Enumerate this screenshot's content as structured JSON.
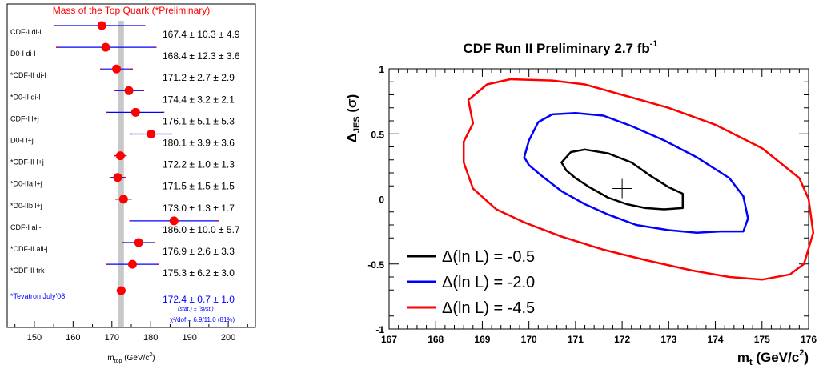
{
  "chart_data": [
    {
      "type": "scatter",
      "title": "Mass of the Top Quark (*Preliminary)",
      "xlabel_main": "m",
      "xlabel_sub": "top",
      "xlabel_tail": " (GeV/c",
      "xlabel_sup": "2",
      "xlabel_close": ")",
      "xlim": [
        143,
        207
      ],
      "xticks": [
        "150",
        "160",
        "170",
        "180",
        "190",
        "200"
      ],
      "band": [
        171.7,
        173.1
      ],
      "measurements": [
        {
          "label": "CDF-I di-l",
          "value": 167.4,
          "err_lo": 155.1,
          "err_hi": 178.6,
          "result": "167.4 ± 10.3 ±  4.9"
        },
        {
          "label": "D0-I di-l",
          "value": 168.4,
          "err_lo": 155.6,
          "err_hi": 181.5,
          "result": "168.4 ± 12.3 ±  3.6"
        },
        {
          "label": "*CDF-II di-l",
          "value": 171.2,
          "err_lo": 167.0,
          "err_hi": 175.4,
          "result": "171.2 ±  2.7 ±  2.9"
        },
        {
          "label": "*D0-II di-l",
          "value": 174.4,
          "err_lo": 170.5,
          "err_hi": 178.3,
          "result": "174.4 ±  3.2 ±  2.1"
        },
        {
          "label": "CDF-I l+j",
          "value": 176.1,
          "err_lo": 168.5,
          "err_hi": 183.5,
          "result": "176.1 ±  5.1 ±  5.3"
        },
        {
          "label": "D0-I l+j",
          "value": 180.1,
          "err_lo": 174.7,
          "err_hi": 185.4,
          "result": "180.1 ±  3.9 ±  3.6"
        },
        {
          "label": "*CDF-II l+j",
          "value": 172.2,
          "err_lo": 170.6,
          "err_hi": 173.8,
          "result": "172.2 ±  1.0 ±  1.3"
        },
        {
          "label": "*D0-IIa l+j",
          "value": 171.5,
          "err_lo": 169.4,
          "err_hi": 173.6,
          "result": "171.5 ±  1.5 ±  1.5"
        },
        {
          "label": "*D0-IIb l+j",
          "value": 173.0,
          "err_lo": 170.9,
          "err_hi": 175.1,
          "result": "173.0 ±  1.3 ±  1.7"
        },
        {
          "label": "CDF-I all-j",
          "value": 186.0,
          "err_lo": 174.5,
          "err_hi": 197.5,
          "result": "186.0 ± 10.0 ±  5.7"
        },
        {
          "label": "*CDF-II all-j",
          "value": 176.9,
          "err_lo": 172.7,
          "err_hi": 181.1,
          "result": "176.9 ±  2.6 ±  3.3"
        },
        {
          "label": "*CDF-II trk",
          "value": 175.3,
          "err_lo": 168.5,
          "err_hi": 182.2,
          "result": "175.3 ±  6.2 ±  3.0"
        }
      ],
      "combined": {
        "label": "*Tevatron July'08",
        "value": 172.4,
        "err_lo": 171.2,
        "err_hi": 173.6,
        "result": "172.4 ± 0.7 ± 1.0",
        "result_sub": "(stat.)  ±  (syst.)",
        "chi2": "χ²/dof = 6.9/11.0 (81%)"
      },
      "colors": {
        "marker": "#ff0000",
        "error": "#0000ff",
        "error_ends": "#ff0000",
        "band": "#c8c8c8",
        "title": "#ff0000",
        "combined_text": "#0000ff"
      }
    },
    {
      "type": "line",
      "title_main": "CDF Run II Preliminary 2.7 fb",
      "title_sup": "-1",
      "xlabel_main": "m",
      "xlabel_sub": "t",
      "xlabel_tail": " (GeV/c",
      "xlabel_sup": "2",
      "xlabel_close": ")",
      "ylabel_main": "Δ",
      "ylabel_sub": "JES",
      "ylabel_tail": " (σ)",
      "xlim": [
        167,
        176
      ],
      "ylim": [
        -1,
        1
      ],
      "xticks": [
        "167",
        "168",
        "169",
        "170",
        "171",
        "172",
        "173",
        "174",
        "175",
        "176"
      ],
      "yticks": [
        "-1",
        "-0.5",
        "0",
        "0.5",
        "1"
      ],
      "best_fit": {
        "x": 172.0,
        "y": 0.08
      },
      "series": [
        {
          "name": "Δ(ln L) = -0.5",
          "color": "#000000",
          "points": [
            [
              170.7,
              0.28
            ],
            [
              170.9,
              0.36
            ],
            [
              171.2,
              0.38
            ],
            [
              171.7,
              0.35
            ],
            [
              172.2,
              0.28
            ],
            [
              172.6,
              0.18
            ],
            [
              173.0,
              0.09
            ],
            [
              173.3,
              0.04
            ],
            [
              173.3,
              -0.03
            ],
            [
              173.3,
              -0.07
            ],
            [
              172.9,
              -0.08
            ],
            [
              172.5,
              -0.07
            ],
            [
              172.1,
              -0.04
            ],
            [
              171.7,
              0.01
            ],
            [
              171.3,
              0.09
            ],
            [
              171.0,
              0.16
            ],
            [
              170.8,
              0.22
            ],
            [
              170.7,
              0.28
            ]
          ]
        },
        {
          "name": "Δ(ln L) = -2.0",
          "color": "#0000ff",
          "points": [
            [
              169.9,
              0.32
            ],
            [
              170.0,
              0.45
            ],
            [
              170.2,
              0.59
            ],
            [
              170.5,
              0.65
            ],
            [
              171.0,
              0.66
            ],
            [
              171.6,
              0.64
            ],
            [
              172.2,
              0.56
            ],
            [
              172.9,
              0.45
            ],
            [
              173.6,
              0.32
            ],
            [
              174.3,
              0.16
            ],
            [
              174.6,
              0.02
            ],
            [
              174.7,
              -0.15
            ],
            [
              174.6,
              -0.25
            ],
            [
              174.1,
              -0.25
            ],
            [
              173.6,
              -0.26
            ],
            [
              173.0,
              -0.24
            ],
            [
              172.3,
              -0.2
            ],
            [
              171.7,
              -0.12
            ],
            [
              171.2,
              -0.04
            ],
            [
              170.7,
              0.06
            ],
            [
              170.3,
              0.17
            ],
            [
              170.0,
              0.26
            ],
            [
              169.9,
              0.32
            ]
          ]
        },
        {
          "name": "Δ(ln L) = -4.5",
          "color": "#ff0000",
          "points": [
            [
              168.8,
              0.58
            ],
            [
              168.7,
              0.76
            ],
            [
              169.1,
              0.88
            ],
            [
              169.6,
              0.92
            ],
            [
              170.5,
              0.91
            ],
            [
              171.2,
              0.88
            ],
            [
              172.0,
              0.8
            ],
            [
              173.0,
              0.7
            ],
            [
              174.0,
              0.57
            ],
            [
              175.0,
              0.39
            ],
            [
              175.8,
              0.16
            ],
            [
              176.0,
              0.0
            ],
            [
              176.1,
              -0.26
            ],
            [
              175.9,
              -0.5
            ],
            [
              175.6,
              -0.58
            ],
            [
              175.0,
              -0.62
            ],
            [
              174.3,
              -0.6
            ],
            [
              173.5,
              -0.55
            ],
            [
              172.5,
              -0.47
            ],
            [
              171.6,
              -0.39
            ],
            [
              170.7,
              -0.29
            ],
            [
              169.9,
              -0.18
            ],
            [
              169.3,
              -0.08
            ],
            [
              168.8,
              0.08
            ],
            [
              168.6,
              0.28
            ],
            [
              168.6,
              0.44
            ],
            [
              168.8,
              0.58
            ]
          ]
        }
      ]
    }
  ]
}
